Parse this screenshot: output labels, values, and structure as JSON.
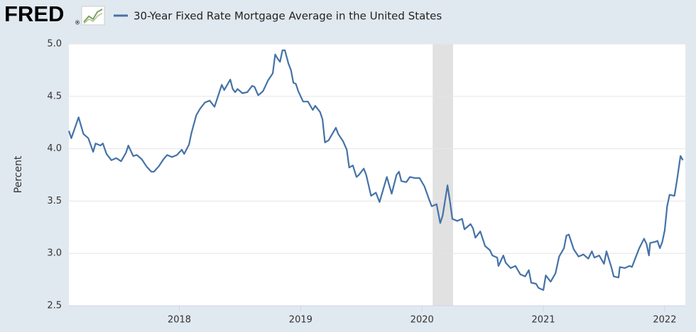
{
  "header": {
    "logo": "FRED",
    "logo_mark": "®"
  },
  "chart_data": {
    "type": "line",
    "y_label": "Percent",
    "series": [
      {
        "name": "30-Year Fixed Rate Mortgage Average in the United States",
        "color": "#4572a7",
        "x": [
          2017.09,
          2017.11,
          2017.17,
          2017.21,
          2017.25,
          2017.29,
          2017.31,
          2017.35,
          2017.37,
          2017.4,
          2017.44,
          2017.48,
          2017.52,
          2017.56,
          2017.58,
          2017.62,
          2017.65,
          2017.69,
          2017.73,
          2017.77,
          2017.79,
          2017.83,
          2017.87,
          2017.9,
          2017.94,
          2017.98,
          2018.02,
          2018.04,
          2018.08,
          2018.1,
          2018.14,
          2018.17,
          2018.21,
          2018.25,
          2018.29,
          2018.31,
          2018.35,
          2018.37,
          2018.4,
          2018.42,
          2018.44,
          2018.46,
          2018.48,
          2018.52,
          2018.56,
          2018.6,
          2018.62,
          2018.65,
          2018.69,
          2018.73,
          2018.77,
          2018.79,
          2018.81,
          2018.83,
          2018.85,
          2018.87,
          2018.9,
          2018.92,
          2018.94,
          2018.96,
          2018.98,
          2019.02,
          2019.06,
          2019.1,
          2019.12,
          2019.16,
          2019.18,
          2019.2,
          2019.23,
          2019.29,
          2019.31,
          2019.35,
          2019.38,
          2019.4,
          2019.43,
          2019.46,
          2019.48,
          2019.52,
          2019.54,
          2019.58,
          2019.62,
          2019.65,
          2019.67,
          2019.71,
          2019.73,
          2019.75,
          2019.79,
          2019.81,
          2019.83,
          2019.87,
          2019.9,
          2019.94,
          2019.98,
          2020.02,
          2020.06,
          2020.08,
          2020.12,
          2020.15,
          2020.17,
          2020.21,
          2020.23,
          2020.25,
          2020.29,
          2020.33,
          2020.35,
          2020.4,
          2020.42,
          2020.44,
          2020.48,
          2020.52,
          2020.56,
          2020.58,
          2020.62,
          2020.63,
          2020.67,
          2020.69,
          2020.73,
          2020.77,
          2020.81,
          2020.85,
          2020.88,
          2020.9,
          2020.94,
          2020.96,
          2021.0,
          2021.02,
          2021.06,
          2021.1,
          2021.13,
          2021.17,
          2021.19,
          2021.21,
          2021.25,
          2021.29,
          2021.33,
          2021.37,
          2021.4,
          2021.42,
          2021.46,
          2021.5,
          2021.52,
          2021.56,
          2021.58,
          2021.62,
          2021.63,
          2021.67,
          2021.71,
          2021.73,
          2021.77,
          2021.79,
          2021.83,
          2021.85,
          2021.87,
          2021.88,
          2021.92,
          2021.94,
          2021.96,
          2021.98,
          2022.0,
          2022.02,
          2022.04,
          2022.08,
          2022.1,
          2022.12,
          2022.13,
          2022.15
        ],
        "values": [
          4.17,
          4.1,
          4.3,
          4.14,
          4.1,
          3.97,
          4.05,
          4.03,
          4.05,
          3.95,
          3.89,
          3.91,
          3.88,
          3.96,
          4.03,
          3.93,
          3.94,
          3.9,
          3.83,
          3.78,
          3.78,
          3.83,
          3.9,
          3.94,
          3.92,
          3.94,
          3.99,
          3.95,
          4.04,
          4.15,
          4.32,
          4.38,
          4.44,
          4.46,
          4.4,
          4.47,
          4.61,
          4.56,
          4.62,
          4.66,
          4.57,
          4.54,
          4.57,
          4.53,
          4.54,
          4.6,
          4.59,
          4.51,
          4.55,
          4.65,
          4.72,
          4.9,
          4.86,
          4.83,
          4.94,
          4.94,
          4.81,
          4.75,
          4.63,
          4.62,
          4.55,
          4.45,
          4.45,
          4.37,
          4.41,
          4.35,
          4.28,
          4.06,
          4.08,
          4.2,
          4.14,
          4.07,
          3.99,
          3.82,
          3.84,
          3.73,
          3.75,
          3.81,
          3.75,
          3.55,
          3.58,
          3.49,
          3.57,
          3.73,
          3.65,
          3.57,
          3.75,
          3.78,
          3.69,
          3.68,
          3.73,
          3.72,
          3.72,
          3.64,
          3.51,
          3.45,
          3.47,
          3.29,
          3.36,
          3.65,
          3.5,
          3.33,
          3.31,
          3.33,
          3.23,
          3.28,
          3.24,
          3.15,
          3.21,
          3.07,
          3.03,
          2.98,
          2.96,
          2.88,
          2.98,
          2.91,
          2.86,
          2.88,
          2.8,
          2.78,
          2.84,
          2.72,
          2.71,
          2.67,
          2.65,
          2.79,
          2.73,
          2.81,
          2.97,
          3.05,
          3.17,
          3.18,
          3.04,
          2.97,
          2.99,
          2.95,
          3.02,
          2.96,
          2.98,
          2.9,
          3.02,
          2.87,
          2.78,
          2.77,
          2.87,
          2.86,
          2.88,
          2.87,
          2.99,
          3.05,
          3.14,
          3.09,
          2.98,
          3.1,
          3.11,
          3.12,
          3.05,
          3.11,
          3.22,
          3.45,
          3.56,
          3.55,
          3.69,
          3.85,
          3.93,
          3.89
        ]
      }
    ],
    "recession": [
      2020.088,
      2020.256
    ],
    "recession_color": "#e1e1e1",
    "xlim": [
      2017.09,
      2022.17
    ],
    "xticks": [
      2018,
      2019,
      2020,
      2021,
      2022
    ],
    "ylim": [
      2.5,
      5.0
    ],
    "yticks": [
      2.5,
      {
        "value": 3,
        "label": "3.0"
      },
      3.5,
      {
        "value": 4,
        "label": "4.0"
      },
      4.5,
      {
        "value": 5,
        "label": "5.0"
      }
    ],
    "grid": true
  }
}
